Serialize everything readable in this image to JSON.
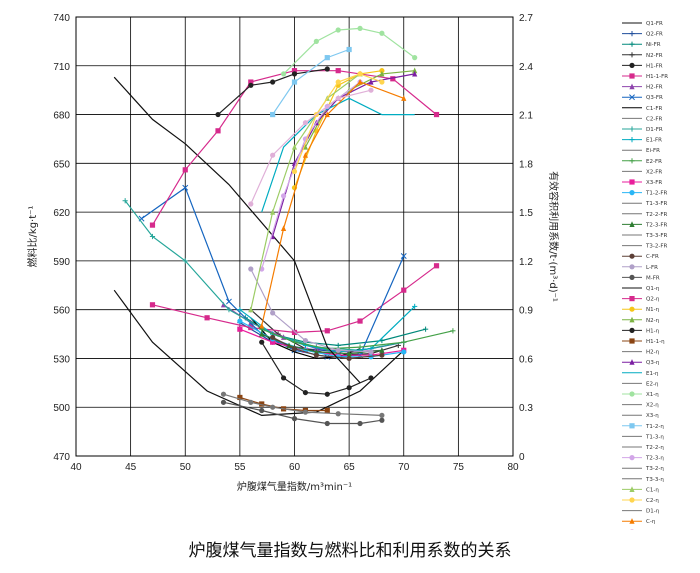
{
  "caption": "炉腹煤气量指数与燃料比和利用系数的关系",
  "chart_data": {
    "type": "line",
    "title": "",
    "xlabel": "炉腹煤气量指数/m³min⁻¹",
    "ylabel_left": "燃料比/kg·t⁻¹",
    "ylabel_right": "有效容积利用系数/t·(m³·d)⁻¹",
    "xlim": [
      40,
      80
    ],
    "ylim_left": [
      470,
      740
    ],
    "ylim_right": [
      0,
      2.7
    ],
    "x_ticks": [
      "40",
      "45",
      "50",
      "55",
      "60",
      "65",
      "70",
      "75",
      "80"
    ],
    "y_left_ticks": [
      "470",
      "500",
      "530",
      "560",
      "590",
      "620",
      "650",
      "680",
      "710",
      "740"
    ],
    "y_right_ticks": [
      "0",
      "0.3",
      "0.6",
      "0.9",
      "1.2",
      "1.5",
      "1.8",
      "2.1",
      "2.4",
      "2.7"
    ],
    "grid": true,
    "legend_position": "right",
    "series": [
      {
        "name": "Q1-FR",
        "axis": "left",
        "color": "#111111",
        "marker": "none",
        "points": [
          [
            43.5,
            572
          ],
          [
            47,
            540
          ],
          [
            52,
            510
          ],
          [
            57,
            495
          ],
          [
            62,
            497
          ],
          [
            66,
            510
          ],
          [
            70,
            535
          ]
        ]
      },
      {
        "name": "Q2-FR",
        "axis": "left",
        "color": "#1f4e9c",
        "marker": "plus",
        "points": [
          [
            55,
            552
          ],
          [
            58,
            540
          ],
          [
            61,
            536
          ],
          [
            64,
            534
          ],
          [
            67,
            536
          ],
          [
            70,
            540
          ]
        ]
      },
      {
        "name": "Ni-FR",
        "axis": "left",
        "color": "#00897b",
        "marker": "plus",
        "points": [
          [
            55.5,
            555
          ],
          [
            58,
            545
          ],
          [
            61,
            540
          ],
          [
            64,
            538
          ],
          [
            68,
            541
          ],
          [
            72,
            548
          ]
        ]
      },
      {
        "name": "N2-FR",
        "axis": "left",
        "color": "#333333",
        "marker": "plus",
        "points": [
          [
            56,
            560
          ],
          [
            58.5,
            545
          ],
          [
            61,
            536
          ],
          [
            64,
            532
          ],
          [
            67,
            533
          ],
          [
            69.5,
            538
          ]
        ]
      },
      {
        "name": "H1-FR",
        "axis": "left",
        "color": "#222222",
        "marker": "circle",
        "points": [
          [
            57,
            540
          ],
          [
            59,
            518
          ],
          [
            61,
            509
          ],
          [
            63,
            508
          ],
          [
            65,
            512
          ],
          [
            67,
            518
          ]
        ]
      },
      {
        "name": "H1-1-FR",
        "axis": "left",
        "color": "#d62a8c",
        "marker": "square",
        "points": [
          [
            47,
            563
          ],
          [
            52,
            555
          ],
          [
            56,
            549
          ],
          [
            60,
            546
          ],
          [
            63,
            547
          ],
          [
            66,
            553
          ],
          [
            70,
            572
          ],
          [
            73,
            587
          ]
        ]
      },
      {
        "name": "H2-FR",
        "axis": "left",
        "color": "#8e44ad",
        "marker": "triangle",
        "points": [
          [
            53.5,
            563
          ],
          [
            56,
            552
          ],
          [
            59,
            543
          ],
          [
            62,
            536
          ],
          [
            65,
            534
          ],
          [
            68,
            535
          ]
        ]
      },
      {
        "name": "Q3-FR",
        "axis": "left",
        "color": "#1565c0",
        "marker": "x",
        "points": [
          [
            46,
            616
          ],
          [
            50,
            635
          ],
          [
            54,
            565
          ],
          [
            57,
            545
          ],
          [
            60,
            535
          ],
          [
            63,
            531
          ],
          [
            66,
            532
          ],
          [
            70,
            593
          ]
        ]
      },
      {
        "name": "C1-FR",
        "axis": "left",
        "color": "#000000",
        "marker": "none",
        "points": [
          [
            56,
            555
          ],
          [
            58,
            540
          ],
          [
            60,
            534
          ],
          [
            62,
            530
          ],
          [
            64,
            531
          ],
          [
            66,
            536
          ]
        ]
      },
      {
        "name": "D1-FR",
        "axis": "left",
        "color": "#26a69a",
        "marker": "plus",
        "points": [
          [
            44.5,
            627
          ],
          [
            47,
            605
          ],
          [
            50,
            590
          ],
          [
            54,
            560
          ],
          [
            58,
            545
          ],
          [
            62,
            537
          ],
          [
            66,
            535
          ],
          [
            70,
            540
          ]
        ]
      },
      {
        "name": "E1-FR",
        "axis": "left",
        "color": "#00acc1",
        "marker": "plus",
        "points": [
          [
            55,
            560
          ],
          [
            58,
            545
          ],
          [
            61,
            538
          ],
          [
            64,
            534
          ],
          [
            67,
            536
          ],
          [
            71,
            562
          ]
        ]
      },
      {
        "name": "E2-FR",
        "axis": "left",
        "color": "#43a047",
        "marker": "plus",
        "points": [
          [
            57,
            548
          ],
          [
            60,
            540
          ],
          [
            63,
            536
          ],
          [
            66,
            537
          ],
          [
            70,
            540
          ],
          [
            74.5,
            547
          ]
        ]
      },
      {
        "name": "X3-FR",
        "axis": "left",
        "color": "#e91e9c",
        "marker": "square",
        "points": [
          [
            55,
            548
          ],
          [
            58,
            540
          ],
          [
            61,
            535
          ],
          [
            64,
            532
          ],
          [
            67,
            532
          ],
          [
            70,
            535
          ]
        ]
      },
      {
        "name": "T1-2-FR",
        "axis": "left",
        "color": "#29b6f6",
        "marker": "circle",
        "points": [
          [
            55,
            553
          ],
          [
            58,
            542
          ],
          [
            61,
            535
          ],
          [
            64,
            531
          ],
          [
            67,
            531
          ],
          [
            70,
            534
          ]
        ]
      },
      {
        "name": "T2-3-FR",
        "axis": "left",
        "color": "#2e7d32",
        "marker": "triangle",
        "points": [
          [
            57,
            545
          ],
          [
            59.5,
            538
          ],
          [
            62,
            534
          ],
          [
            65,
            533
          ],
          [
            68,
            535
          ]
        ]
      },
      {
        "name": "C-FR",
        "axis": "left",
        "color": "#5d4037",
        "marker": "circle",
        "points": [
          [
            58,
            543
          ],
          [
            60,
            536
          ],
          [
            62,
            532
          ],
          [
            65,
            530
          ],
          [
            68,
            532
          ]
        ]
      },
      {
        "name": "L-FR",
        "axis": "left",
        "color": "#b0a0c8",
        "marker": "circle",
        "points": [
          [
            56,
            585
          ],
          [
            58,
            558
          ],
          [
            61,
            541
          ],
          [
            64,
            535
          ],
          [
            67,
            534
          ]
        ]
      },
      {
        "name": "M-FR",
        "axis": "left",
        "color": "#555555",
        "marker": "circle",
        "points": [
          [
            53.5,
            503
          ],
          [
            57,
            498
          ],
          [
            60,
            493
          ],
          [
            63,
            490
          ],
          [
            66,
            490
          ],
          [
            68,
            492
          ]
        ]
      },
      {
        "name": "Q1-η",
        "axis": "right",
        "color": "#111111",
        "marker": "none",
        "points": [
          [
            43.5,
            2.33
          ],
          [
            47,
            2.07
          ],
          [
            50,
            1.92
          ],
          [
            54,
            1.67
          ],
          [
            60,
            1.2
          ],
          [
            63,
            0.67
          ],
          [
            66,
            0.45
          ]
        ]
      },
      {
        "name": "Q2-η",
        "axis": "right",
        "color": "#d62a8c",
        "marker": "square",
        "points": [
          [
            47,
            1.42
          ],
          [
            50,
            1.76
          ],
          [
            53,
            2.0
          ],
          [
            56,
            2.3
          ],
          [
            60,
            2.37
          ],
          [
            64,
            2.37
          ],
          [
            69,
            2.32
          ],
          [
            73,
            2.1
          ]
        ]
      },
      {
        "name": "N1-η",
        "axis": "right",
        "color": "#f5c518",
        "marker": "circle",
        "points": [
          [
            60,
            1.65
          ],
          [
            62,
            2.0
          ],
          [
            64,
            2.28
          ],
          [
            66,
            2.35
          ],
          [
            68,
            2.37
          ]
        ]
      },
      {
        "name": "N2-η",
        "axis": "right",
        "color": "#7cb342",
        "marker": "triangle",
        "points": [
          [
            61,
            1.9
          ],
          [
            63,
            2.15
          ],
          [
            65,
            2.25
          ],
          [
            68,
            2.35
          ],
          [
            71,
            2.37
          ]
        ]
      },
      {
        "name": "H1-η",
        "axis": "right",
        "color": "#222222",
        "marker": "circle",
        "points": [
          [
            53,
            2.1
          ],
          [
            56,
            2.28
          ],
          [
            58,
            2.3
          ],
          [
            60,
            2.35
          ],
          [
            63,
            2.38
          ]
        ]
      },
      {
        "name": "H1-1-η",
        "axis": "right",
        "color": "#8b4513",
        "marker": "square",
        "points": [
          [
            55,
            0.36
          ],
          [
            57,
            0.32
          ],
          [
            59,
            0.29
          ],
          [
            61,
            0.28
          ],
          [
            63,
            0.28
          ]
        ]
      },
      {
        "name": "Q3-η",
        "axis": "right",
        "color": "#7b1fa2",
        "marker": "triangle",
        "points": [
          [
            58,
            1.35
          ],
          [
            60,
            1.8
          ],
          [
            62,
            2.05
          ],
          [
            64,
            2.2
          ],
          [
            67,
            2.3
          ],
          [
            71,
            2.35
          ]
        ]
      },
      {
        "name": "E1-η",
        "axis": "right",
        "color": "#00acc1",
        "marker": "none",
        "points": [
          [
            57,
            1.5
          ],
          [
            59,
            1.9
          ],
          [
            62,
            2.1
          ],
          [
            65,
            2.2
          ],
          [
            68,
            2.1
          ],
          [
            71,
            2.1
          ]
        ]
      },
      {
        "name": "X1-η",
        "axis": "right",
        "color": "#a0e3a0",
        "marker": "circle",
        "points": [
          [
            59,
            2.35
          ],
          [
            62,
            2.55
          ],
          [
            64,
            2.62
          ],
          [
            66,
            2.63
          ],
          [
            68,
            2.6
          ],
          [
            71,
            2.45
          ]
        ]
      },
      {
        "name": "T1-2-η",
        "axis": "right",
        "color": "#7ec8f0",
        "marker": "square",
        "points": [
          [
            58,
            2.1
          ],
          [
            60,
            2.3
          ],
          [
            63,
            2.45
          ],
          [
            65,
            2.5
          ]
        ]
      },
      {
        "name": "T2-3-η",
        "axis": "right",
        "color": "#d2a6e8",
        "marker": "circle",
        "points": [
          [
            57,
            1.15
          ],
          [
            59,
            1.6
          ],
          [
            61,
            1.95
          ],
          [
            63,
            2.15
          ],
          [
            66,
            2.3
          ]
        ]
      },
      {
        "name": "C1-η",
        "axis": "right",
        "color": "#9ccc65",
        "marker": "triangle",
        "points": [
          [
            56,
            0.9
          ],
          [
            58,
            1.5
          ],
          [
            60,
            1.9
          ],
          [
            63,
            2.2
          ],
          [
            66,
            2.35
          ]
        ]
      },
      {
        "name": "C2-η",
        "axis": "right",
        "color": "#ffd54f",
        "marker": "circle",
        "points": [
          [
            60,
            1.75
          ],
          [
            62,
            2.1
          ],
          [
            64,
            2.3
          ],
          [
            66,
            2.35
          ],
          [
            68,
            2.3
          ]
        ]
      },
      {
        "name": "C-η",
        "axis": "right",
        "color": "#f57c00",
        "marker": "triangle",
        "points": [
          [
            57,
            0.8
          ],
          [
            59,
            1.4
          ],
          [
            61,
            1.85
          ],
          [
            63,
            2.1
          ],
          [
            66,
            2.3
          ],
          [
            70,
            2.2
          ]
        ]
      },
      {
        "name": "L-η",
        "axis": "right",
        "color": "#e0b0d8",
        "marker": "circle",
        "points": [
          [
            56,
            1.55
          ],
          [
            58,
            1.85
          ],
          [
            61,
            2.05
          ],
          [
            64,
            2.2
          ],
          [
            67,
            2.25
          ]
        ]
      },
      {
        "name": "M-η",
        "axis": "right",
        "color": "#777777",
        "marker": "circle",
        "points": [
          [
            53.5,
            0.38
          ],
          [
            56,
            0.33
          ],
          [
            58,
            0.3
          ],
          [
            61,
            0.27
          ],
          [
            64,
            0.26
          ],
          [
            68,
            0.25
          ]
        ]
      }
    ],
    "legend_extra": [
      "Q1-FR",
      "Q2-FR",
      "Ni-FR",
      "N2-FR",
      "H1-FR",
      "H1-1-FR",
      "H2-FR",
      "Q3-FR",
      "C1-FR",
      "C2-FR",
      "D1-FR",
      "E1-FR",
      "Ei-FR",
      "E2-FR",
      "X2-FR",
      "X3-FR",
      "T1-2-FR",
      "T1-3-FR",
      "T2-2-FR",
      "T2-3-FR",
      "T3-3-FR",
      "T3-2-FR",
      "C-FR",
      "L-FR",
      "M-FR",
      "Q1-η",
      "Q2-η",
      "N1-η",
      "N2-η",
      "H1-η",
      "H1-1-η",
      "H2-η",
      "Q3-η",
      "E1-η",
      "E2-η",
      "X1-η",
      "X2-η",
      "X3-η",
      "T1-2-η",
      "T1-3-η",
      "T2-2-η",
      "T2-3-η",
      "T3-2-η",
      "T3-3-η",
      "C1-η",
      "C2-η",
      "D1-η",
      "C-η",
      "L-η",
      "M-η"
    ]
  }
}
